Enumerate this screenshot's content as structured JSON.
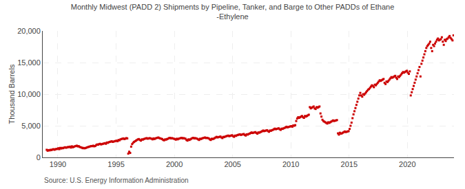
{
  "chart_data": {
    "type": "scatter",
    "title": "Monthly Midwest (PADD 2) Shipments by Pipeline, Tanker, and Barge to Other PADDs of Ethane\n-Ethylene",
    "ylabel": "Thousand Barrels",
    "annotations": [
      "Source: U.S. Energy Information Administration"
    ],
    "color": "#cc0000",
    "marker": "square",
    "grid": true,
    "xlim": [
      1988.7,
      2024.0
    ],
    "ylim": [
      0,
      20000
    ],
    "xticks": [
      1990,
      1995,
      2000,
      2005,
      2010,
      2015,
      2020
    ],
    "yticks": [
      0,
      {
        "value": 5000,
        "label": "5,000"
      },
      {
        "value": 10000,
        "label": "10,000"
      },
      {
        "value": 15000,
        "label": "15,000"
      },
      {
        "value": 20000,
        "label": "20,000"
      }
    ],
    "x": [
      1989.0417,
      1989.125,
      1989.2083,
      1989.2917,
      1989.375,
      1989.4583,
      1989.5417,
      1989.625,
      1989.7083,
      1989.7917,
      1989.875,
      1989.9583,
      1990.0417,
      1990.125,
      1990.2083,
      1990.2917,
      1990.375,
      1990.4583,
      1990.5417,
      1990.625,
      1990.7083,
      1990.7917,
      1990.875,
      1990.9583,
      1991.0417,
      1991.125,
      1991.2083,
      1991.2917,
      1991.375,
      1991.4583,
      1991.5417,
      1991.625,
      1991.7083,
      1991.7917,
      1991.875,
      1991.9583,
      1992.0417,
      1992.125,
      1992.2083,
      1992.2917,
      1992.375,
      1992.4583,
      1992.5417,
      1992.625,
      1992.7083,
      1992.7917,
      1992.875,
      1992.9583,
      1993.0417,
      1993.125,
      1993.2083,
      1993.2917,
      1993.375,
      1993.4583,
      1993.5417,
      1993.625,
      1993.7083,
      1993.7917,
      1993.875,
      1993.9583,
      1994.0417,
      1994.125,
      1994.2083,
      1994.2917,
      1994.375,
      1994.4583,
      1994.5417,
      1994.625,
      1994.7083,
      1994.7917,
      1994.875,
      1994.9583,
      1995.0417,
      1995.125,
      1995.2083,
      1995.2917,
      1995.375,
      1995.4583,
      1995.5417,
      1995.625,
      1995.7083,
      1995.7917,
      1995.875,
      1995.9583,
      1996.0417,
      1996.125,
      1996.2083,
      1996.2917,
      1996.375,
      1996.4583,
      1996.5417,
      1996.625,
      1996.7083,
      1996.7917,
      1996.875,
      1996.9583,
      1997.0417,
      1997.125,
      1997.2083,
      1997.2917,
      1997.375,
      1997.4583,
      1997.5417,
      1997.625,
      1997.7083,
      1997.7917,
      1997.875,
      1997.9583,
      1998.0417,
      1998.125,
      1998.2083,
      1998.2917,
      1998.375,
      1998.4583,
      1998.5417,
      1998.625,
      1998.7083,
      1998.7917,
      1998.875,
      1998.9583,
      1999.0417,
      1999.125,
      1999.2083,
      1999.2917,
      1999.375,
      1999.4583,
      1999.5417,
      1999.625,
      1999.7083,
      1999.7917,
      1999.875,
      1999.9583,
      2000.0417,
      2000.125,
      2000.2083,
      2000.2917,
      2000.375,
      2000.4583,
      2000.5417,
      2000.625,
      2000.7083,
      2000.7917,
      2000.875,
      2000.9583,
      2001.0417,
      2001.125,
      2001.2083,
      2001.2917,
      2001.375,
      2001.4583,
      2001.5417,
      2001.625,
      2001.7083,
      2001.7917,
      2001.875,
      2001.9583,
      2002.0417,
      2002.125,
      2002.2083,
      2002.2917,
      2002.375,
      2002.4583,
      2002.5417,
      2002.625,
      2002.7083,
      2002.7917,
      2002.875,
      2002.9583,
      2003.0417,
      2003.125,
      2003.2083,
      2003.2917,
      2003.375,
      2003.4583,
      2003.5417,
      2003.625,
      2003.7083,
      2003.7917,
      2003.875,
      2003.9583,
      2004.0417,
      2004.125,
      2004.2083,
      2004.2917,
      2004.375,
      2004.4583,
      2004.5417,
      2004.625,
      2004.7083,
      2004.7917,
      2004.875,
      2004.9583,
      2005.0417,
      2005.125,
      2005.2083,
      2005.2917,
      2005.375,
      2005.4583,
      2005.5417,
      2005.625,
      2005.7083,
      2005.7917,
      2005.875,
      2005.9583,
      2006.0417,
      2006.125,
      2006.2083,
      2006.2917,
      2006.375,
      2006.4583,
      2006.5417,
      2006.625,
      2006.7083,
      2006.7917,
      2006.875,
      2006.9583,
      2007.0417,
      2007.125,
      2007.2083,
      2007.2917,
      2007.375,
      2007.4583,
      2007.5417,
      2007.625,
      2007.7083,
      2007.7917,
      2007.875,
      2007.9583,
      2008.0417,
      2008.125,
      2008.2083,
      2008.2917,
      2008.375,
      2008.4583,
      2008.5417,
      2008.625,
      2008.7083,
      2008.7917,
      2008.875,
      2008.9583,
      2009.0417,
      2009.125,
      2009.2083,
      2009.2917,
      2009.375,
      2009.4583,
      2009.5417,
      2009.625,
      2009.7083,
      2009.7917,
      2009.875,
      2009.9583,
      2010.0417,
      2010.125,
      2010.2083,
      2010.2917,
      2010.375,
      2010.4583,
      2010.5417,
      2010.625,
      2010.7083,
      2010.7917,
      2010.875,
      2010.9583,
      2011.0417,
      2011.125,
      2011.2083,
      2011.2917,
      2011.375,
      2011.4583,
      2011.5417,
      2011.625,
      2011.7083,
      2011.7917,
      2011.875,
      2011.9583,
      2012.0417,
      2012.125,
      2012.2083,
      2012.2917,
      2012.375,
      2012.4583,
      2012.5417,
      2012.625,
      2012.7083,
      2012.7917,
      2012.875,
      2012.9583,
      2013.0417,
      2013.125,
      2013.2083,
      2013.2917,
      2013.375,
      2013.4583,
      2013.5417,
      2013.625,
      2013.7083,
      2013.7917,
      2013.875,
      2013.9583,
      2014.0417,
      2014.125,
      2014.2083,
      2014.2917,
      2014.375,
      2014.4583,
      2014.5417,
      2014.625,
      2014.7083,
      2014.7917,
      2014.875,
      2014.9583,
      2015.0417,
      2015.125,
      2015.2083,
      2015.2917,
      2015.375,
      2015.4583,
      2015.5417,
      2015.625,
      2015.7083,
      2015.7917,
      2015.875,
      2015.9583,
      2016.0417,
      2016.125,
      2016.2083,
      2016.2917,
      2016.375,
      2016.4583,
      2016.5417,
      2016.625,
      2016.7083,
      2016.7917,
      2016.875,
      2016.9583,
      2017.0417,
      2017.125,
      2017.2083,
      2017.2917,
      2017.375,
      2017.4583,
      2017.5417,
      2017.625,
      2017.7083,
      2017.7917,
      2017.875,
      2017.9583,
      2018.0417,
      2018.125,
      2018.2083,
      2018.2917,
      2018.375,
      2018.4583,
      2018.5417,
      2018.625,
      2018.7083,
      2018.7917,
      2018.875,
      2018.9583,
      2019.0417,
      2019.125,
      2019.2083,
      2019.2917,
      2019.375,
      2019.4583,
      2019.5417,
      2019.625,
      2019.7083,
      2019.7917,
      2019.875,
      2019.9583,
      2020.0417,
      2020.125,
      2020.2083,
      2020.2917,
      2020.375,
      2020.4583,
      2020.5417,
      2020.625,
      2020.7083,
      2020.7917,
      2020.875,
      2020.9583,
      2021.0417,
      2021.125,
      2021.2083,
      2021.2917,
      2021.375,
      2021.4583,
      2021.5417,
      2021.625,
      2021.7083,
      2021.7917,
      2021.875,
      2021.9583,
      2022.0417,
      2022.125,
      2022.2083,
      2022.2917,
      2022.375,
      2022.4583,
      2022.5417,
      2022.625,
      2022.7083,
      2022.7917,
      2022.875,
      2022.9583,
      2023.0417,
      2023.125,
      2023.2083,
      2023.2917,
      2023.375,
      2023.4583,
      2023.5417,
      2023.625,
      2023.7083,
      2023.7917,
      2023.875,
      2023.9583
    ],
    "values": [
      1200,
      1050,
      1150,
      1100,
      1200,
      1150,
      1250,
      1300,
      1200,
      1280,
      1350,
      1320,
      1450,
      1300,
      1500,
      1400,
      1500,
      1450,
      1550,
      1600,
      1520,
      1580,
      1650,
      1620,
      1700,
      1550,
      1750,
      1600,
      1680,
      1750,
      1800,
      1850,
      1730,
      1780,
      1650,
      1600,
      1550,
      1450,
      1500,
      1430,
      1470,
      1550,
      1600,
      1650,
      1700,
      1750,
      1800,
      1770,
      1850,
      1750,
      1800,
      1950,
      2050,
      2000,
      2100,
      2150,
      2050,
      2100,
      2150,
      2200,
      2250,
      2150,
      2350,
      2300,
      2400,
      2450,
      2500,
      2550,
      2450,
      2500,
      2550,
      2600,
      2650,
      2550,
      2750,
      2700,
      2850,
      2900,
      2950,
      3000,
      2900,
      2950,
      3050,
      3000,
      600,
      900,
      700,
      1700,
      2100,
      2300,
      2450,
      2550,
      2650,
      2750,
      2850,
      2900,
      2750,
      2650,
      2850,
      2800,
      2900,
      2950,
      3000,
      3050,
      2950,
      3000,
      3050,
      3000,
      2950,
      2850,
      3000,
      2900,
      3000,
      3050,
      3100,
      3150,
      3050,
      3000,
      2950,
      2900,
      2750,
      2700,
      2850,
      2800,
      2900,
      2950,
      3050,
      3100,
      3000,
      3050,
      3000,
      2950,
      2900,
      2800,
      2950,
      2850,
      2950,
      3000,
      3050,
      3100,
      3000,
      3050,
      3000,
      2950,
      2750,
      2650,
      2850,
      2750,
      2850,
      2950,
      3050,
      3100,
      3000,
      3050,
      3000,
      2950,
      2850,
      2750,
      2950,
      2900,
      3000,
      3050,
      3100,
      3150,
      3050,
      3100,
      3050,
      3000,
      2850,
      2750,
      2950,
      2900,
      2950,
      3050,
      3150,
      3250,
      3150,
      3200,
      3250,
      3300,
      3150,
      3050,
      3250,
      3200,
      3300,
      3350,
      3400,
      3450,
      3350,
      3400,
      3450,
      3500,
      3350,
      3250,
      3450,
      3400,
      3500,
      3550,
      3600,
      3650,
      3550,
      3600,
      3650,
      3700,
      3550,
      3450,
      3650,
      3600,
      3700,
      3750,
      3850,
      3950,
      3850,
      3900,
      3950,
      4000,
      3850,
      3750,
      3950,
      3900,
      4000,
      4050,
      4150,
      4250,
      4150,
      4200,
      4250,
      4300,
      4150,
      4050,
      4250,
      4200,
      4300,
      4350,
      4450,
      4550,
      4450,
      4500,
      4550,
      4600,
      4450,
      4350,
      4550,
      4500,
      4600,
      4650,
      4750,
      4850,
      4750,
      4800,
      4850,
      4900,
      4950,
      4850,
      5050,
      5000,
      5100,
      5750,
      6150,
      6350,
      6250,
      6350,
      6450,
      6550,
      6350,
      6250,
      6550,
      6450,
      6550,
      6650,
      6750,
      7950,
      7750,
      7850,
      7950,
      8050,
      7750,
      7650,
      7950,
      7850,
      7950,
      8050,
      6950,
      6450,
      5950,
      5750,
      5650,
      5550,
      5450,
      5350,
      5550,
      5450,
      5550,
      5650,
      5750,
      5850,
      5750,
      5800,
      5850,
      5900,
      3800,
      3600,
      3900,
      3750,
      3800,
      3900,
      4000,
      4100,
      4000,
      4050,
      4100,
      4150,
      4500,
      5000,
      5500,
      6200,
      6800,
      7300,
      7800,
      8300,
      8800,
      9300,
      9800,
      10200,
      9800,
      9600,
      10000,
      9900,
      10100,
      10300,
      10500,
      10700,
      10800,
      11000,
      11200,
      11400,
      11300,
      11100,
      11500,
      11400,
      11600,
      11800,
      12000,
      12200,
      12100,
      12200,
      12300,
      12400,
      11800,
      11600,
      12000,
      11900,
      12100,
      12300,
      12500,
      12700,
      12600,
      12700,
      12800,
      12900,
      12600,
      12400,
      12800,
      12700,
      12900,
      13100,
      13300,
      13500,
      13400,
      13500,
      13600,
      13700,
      13400,
      13200,
      13600,
      9800,
      10300,
      10800,
      11300,
      11800,
      12300,
      12800,
      13300,
      13800,
      14300,
      12800,
      14800,
      15300,
      15800,
      16300,
      16800,
      17300,
      17600,
      17800,
      18000,
      18300,
      17300,
      16800,
      17800,
      17600,
      18000,
      18300,
      18600,
      18800,
      18500,
      18600,
      18700,
      19000,
      18300,
      17800,
      18600,
      18400,
      18700,
      18800,
      19000,
      19200,
      18900,
      18700,
      18500,
      19300
    ]
  }
}
